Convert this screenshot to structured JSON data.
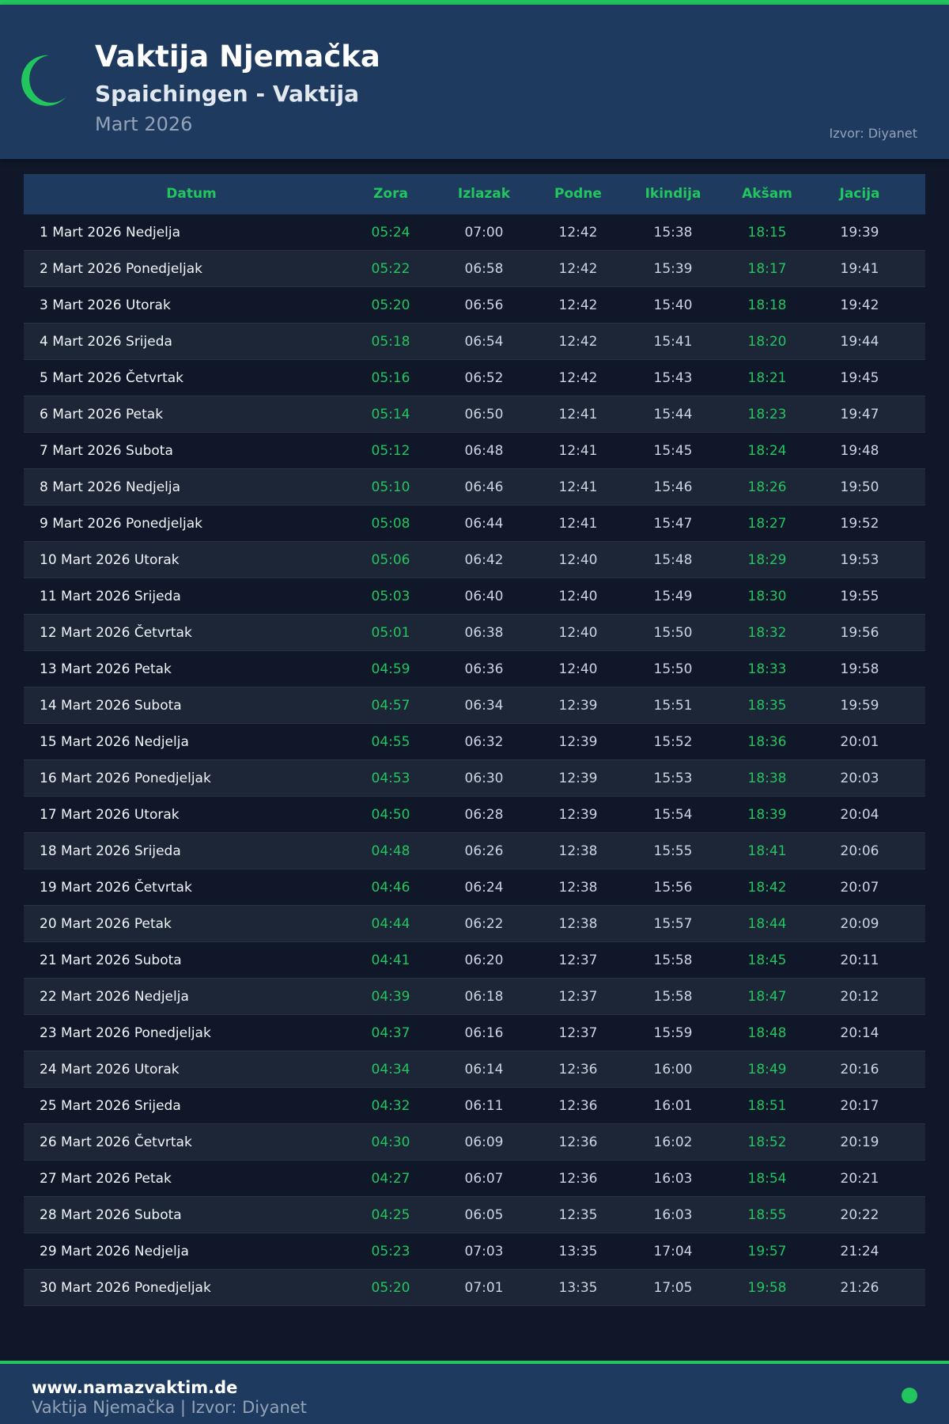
{
  "header": {
    "title": "Vaktija Njemačka",
    "subtitle": "Spaichingen - Vaktija",
    "month": "Mart 2026",
    "source": "Izvor: Diyanet"
  },
  "colors": {
    "accent": "#22c55e",
    "header_bg": "#1e3a5f",
    "page_bg": "#0f1729"
  },
  "table": {
    "columns": [
      "Datum",
      "Zora",
      "Izlazak",
      "Podne",
      "Ikindija",
      "Akšam",
      "Jacija"
    ],
    "rows": [
      [
        "1 Mart 2026 Nedjelja",
        "05:24",
        "07:00",
        "12:42",
        "15:38",
        "18:15",
        "19:39"
      ],
      [
        "2 Mart 2026 Ponedjeljak",
        "05:22",
        "06:58",
        "12:42",
        "15:39",
        "18:17",
        "19:41"
      ],
      [
        "3 Mart 2026 Utorak",
        "05:20",
        "06:56",
        "12:42",
        "15:40",
        "18:18",
        "19:42"
      ],
      [
        "4 Mart 2026 Srijeda",
        "05:18",
        "06:54",
        "12:42",
        "15:41",
        "18:20",
        "19:44"
      ],
      [
        "5 Mart 2026 Četvrtak",
        "05:16",
        "06:52",
        "12:42",
        "15:43",
        "18:21",
        "19:45"
      ],
      [
        "6 Mart 2026 Petak",
        "05:14",
        "06:50",
        "12:41",
        "15:44",
        "18:23",
        "19:47"
      ],
      [
        "7 Mart 2026 Subota",
        "05:12",
        "06:48",
        "12:41",
        "15:45",
        "18:24",
        "19:48"
      ],
      [
        "8 Mart 2026 Nedjelja",
        "05:10",
        "06:46",
        "12:41",
        "15:46",
        "18:26",
        "19:50"
      ],
      [
        "9 Mart 2026 Ponedjeljak",
        "05:08",
        "06:44",
        "12:41",
        "15:47",
        "18:27",
        "19:52"
      ],
      [
        "10 Mart 2026 Utorak",
        "05:06",
        "06:42",
        "12:40",
        "15:48",
        "18:29",
        "19:53"
      ],
      [
        "11 Mart 2026 Srijeda",
        "05:03",
        "06:40",
        "12:40",
        "15:49",
        "18:30",
        "19:55"
      ],
      [
        "12 Mart 2026 Četvrtak",
        "05:01",
        "06:38",
        "12:40",
        "15:50",
        "18:32",
        "19:56"
      ],
      [
        "13 Mart 2026 Petak",
        "04:59",
        "06:36",
        "12:40",
        "15:50",
        "18:33",
        "19:58"
      ],
      [
        "14 Mart 2026 Subota",
        "04:57",
        "06:34",
        "12:39",
        "15:51",
        "18:35",
        "19:59"
      ],
      [
        "15 Mart 2026 Nedjelja",
        "04:55",
        "06:32",
        "12:39",
        "15:52",
        "18:36",
        "20:01"
      ],
      [
        "16 Mart 2026 Ponedjeljak",
        "04:53",
        "06:30",
        "12:39",
        "15:53",
        "18:38",
        "20:03"
      ],
      [
        "17 Mart 2026 Utorak",
        "04:50",
        "06:28",
        "12:39",
        "15:54",
        "18:39",
        "20:04"
      ],
      [
        "18 Mart 2026 Srijeda",
        "04:48",
        "06:26",
        "12:38",
        "15:55",
        "18:41",
        "20:06"
      ],
      [
        "19 Mart 2026 Četvrtak",
        "04:46",
        "06:24",
        "12:38",
        "15:56",
        "18:42",
        "20:07"
      ],
      [
        "20 Mart 2026 Petak",
        "04:44",
        "06:22",
        "12:38",
        "15:57",
        "18:44",
        "20:09"
      ],
      [
        "21 Mart 2026 Subota",
        "04:41",
        "06:20",
        "12:37",
        "15:58",
        "18:45",
        "20:11"
      ],
      [
        "22 Mart 2026 Nedjelja",
        "04:39",
        "06:18",
        "12:37",
        "15:58",
        "18:47",
        "20:12"
      ],
      [
        "23 Mart 2026 Ponedjeljak",
        "04:37",
        "06:16",
        "12:37",
        "15:59",
        "18:48",
        "20:14"
      ],
      [
        "24 Mart 2026 Utorak",
        "04:34",
        "06:14",
        "12:36",
        "16:00",
        "18:49",
        "20:16"
      ],
      [
        "25 Mart 2026 Srijeda",
        "04:32",
        "06:11",
        "12:36",
        "16:01",
        "18:51",
        "20:17"
      ],
      [
        "26 Mart 2026 Četvrtak",
        "04:30",
        "06:09",
        "12:36",
        "16:02",
        "18:52",
        "20:19"
      ],
      [
        "27 Mart 2026 Petak",
        "04:27",
        "06:07",
        "12:36",
        "16:03",
        "18:54",
        "20:21"
      ],
      [
        "28 Mart 2026 Subota",
        "04:25",
        "06:05",
        "12:35",
        "16:03",
        "18:55",
        "20:22"
      ],
      [
        "29 Mart 2026 Nedjelja",
        "05:23",
        "07:03",
        "13:35",
        "17:04",
        "19:57",
        "21:24"
      ],
      [
        "30 Mart 2026 Ponedjeljak",
        "05:20",
        "07:01",
        "13:35",
        "17:05",
        "19:58",
        "21:26"
      ]
    ]
  },
  "footer": {
    "site": "www.namazvaktim.de",
    "info": "Vaktija Njemačka | Izvor: Diyanet"
  }
}
